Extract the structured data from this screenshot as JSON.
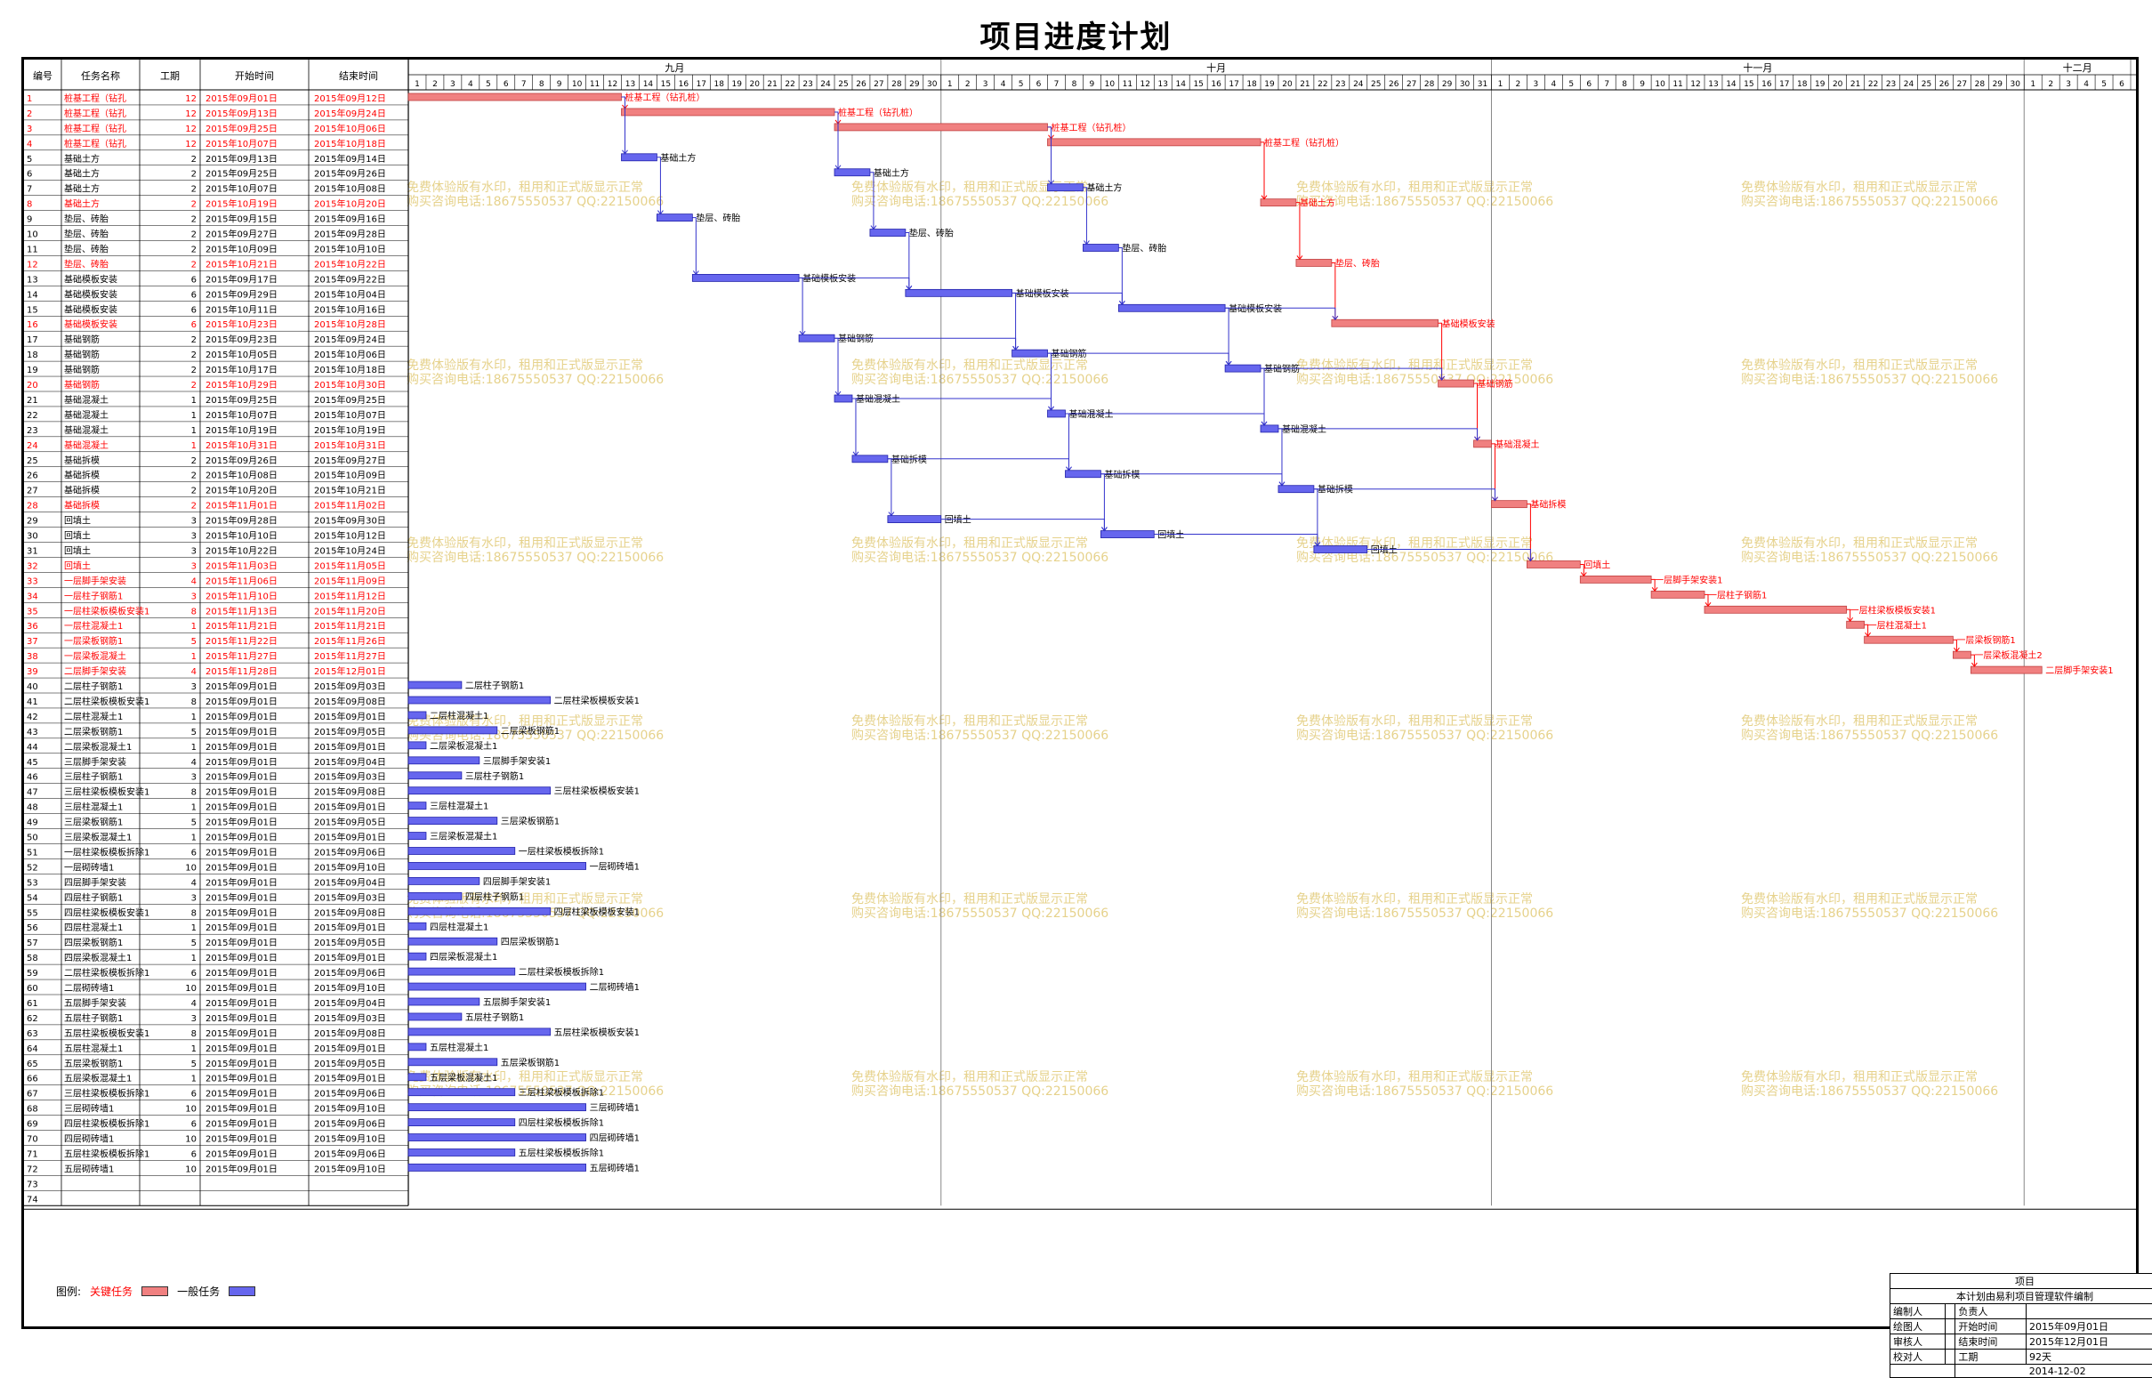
{
  "title": "项目进度计划",
  "watermark": [
    "免费体验版有水印，租用和正式版显示正常",
    "购买咨询电话:18675550537 QQ:22150066"
  ],
  "columns": [
    "编号",
    "任务名称",
    "工期",
    "开始时间",
    "结束时间"
  ],
  "months": [
    {
      "label": "九月",
      "days": 30
    },
    {
      "label": "十月",
      "days": 31
    },
    {
      "label": "十一月",
      "days": 30
    },
    {
      "label": "十二月",
      "days": 6
    }
  ],
  "colors": {
    "critical": "#f08080",
    "critical_text": "#ff0000",
    "normal": "#6666ee",
    "normal_text": "#000000",
    "link_normal": "#3333cc",
    "link_critical": "#ff0000",
    "watermark": "#e6d28c"
  },
  "legend": {
    "label": "图例:",
    "critical": "关键任务",
    "normal": "一般任务"
  },
  "title_block": {
    "heading": "项目",
    "note": "本计划由易利项目管理软件编制",
    "rows": [
      [
        "编制人",
        "",
        "负责人",
        ""
      ],
      [
        "绘图人",
        "",
        "开始时间",
        "2015年09月01日"
      ],
      [
        "审核人",
        "",
        "结束时间",
        "2015年12月01日"
      ],
      [
        "校对人",
        "",
        "工期",
        "92天"
      ]
    ],
    "date": "2014-12-02"
  },
  "chart_data": {
    "type": "gantt",
    "x_axis": "2015-09-01 to 2015-12-06 (days)",
    "tasks": [
      {
        "id": 1,
        "name": "桩基工程（钻孔",
        "dur": 12,
        "start": "2015年09月01日",
        "end": "2015年09月12日",
        "critical": true,
        "bar_label": "桩基工程（钻孔桩）"
      },
      {
        "id": 2,
        "name": "桩基工程（钻孔",
        "dur": 12,
        "start": "2015年09月13日",
        "end": "2015年09月24日",
        "critical": true,
        "bar_label": "桩基工程（钻孔桩）"
      },
      {
        "id": 3,
        "name": "桩基工程（钻孔",
        "dur": 12,
        "start": "2015年09月25日",
        "end": "2015年10月06日",
        "critical": true,
        "bar_label": "桩基工程（钻孔桩）"
      },
      {
        "id": 4,
        "name": "桩基工程（钻孔",
        "dur": 12,
        "start": "2015年10月07日",
        "end": "2015年10月18日",
        "critical": true,
        "bar_label": "桩基工程（钻孔桩）"
      },
      {
        "id": 5,
        "name": "基础土方",
        "dur": 2,
        "start": "2015年09月13日",
        "end": "2015年09月14日",
        "critical": false,
        "bar_label": "基础土方"
      },
      {
        "id": 6,
        "name": "基础土方",
        "dur": 2,
        "start": "2015年09月25日",
        "end": "2015年09月26日",
        "critical": false,
        "bar_label": "基础土方"
      },
      {
        "id": 7,
        "name": "基础土方",
        "dur": 2,
        "start": "2015年10月07日",
        "end": "2015年10月08日",
        "critical": false,
        "bar_label": "基础土方"
      },
      {
        "id": 8,
        "name": "基础土方",
        "dur": 2,
        "start": "2015年10月19日",
        "end": "2015年10月20日",
        "critical": true,
        "bar_label": "基础土方"
      },
      {
        "id": 9,
        "name": "垫层、砖胎",
        "dur": 2,
        "start": "2015年09月15日",
        "end": "2015年09月16日",
        "critical": false,
        "bar_label": "垫层、砖胎"
      },
      {
        "id": 10,
        "name": "垫层、砖胎",
        "dur": 2,
        "start": "2015年09月27日",
        "end": "2015年09月28日",
        "critical": false,
        "bar_label": "垫层、砖胎"
      },
      {
        "id": 11,
        "name": "垫层、砖胎",
        "dur": 2,
        "start": "2015年10月09日",
        "end": "2015年10月10日",
        "critical": false,
        "bar_label": "垫层、砖胎"
      },
      {
        "id": 12,
        "name": "垫层、砖胎",
        "dur": 2,
        "start": "2015年10月21日",
        "end": "2015年10月22日",
        "critical": true,
        "bar_label": "垫层、砖胎"
      },
      {
        "id": 13,
        "name": "基础模板安装",
        "dur": 6,
        "start": "2015年09月17日",
        "end": "2015年09月22日",
        "critical": false,
        "bar_label": "基础模板安装"
      },
      {
        "id": 14,
        "name": "基础模板安装",
        "dur": 6,
        "start": "2015年09月29日",
        "end": "2015年10月04日",
        "critical": false,
        "bar_label": "基础模板安装"
      },
      {
        "id": 15,
        "name": "基础模板安装",
        "dur": 6,
        "start": "2015年10月11日",
        "end": "2015年10月16日",
        "critical": false,
        "bar_label": "基础模板安装"
      },
      {
        "id": 16,
        "name": "基础模板安装",
        "dur": 6,
        "start": "2015年10月23日",
        "end": "2015年10月28日",
        "critical": true,
        "bar_label": "基础模板安装"
      },
      {
        "id": 17,
        "name": "基础钢筋",
        "dur": 2,
        "start": "2015年09月23日",
        "end": "2015年09月24日",
        "critical": false,
        "bar_label": "基础钢筋"
      },
      {
        "id": 18,
        "name": "基础钢筋",
        "dur": 2,
        "start": "2015年10月05日",
        "end": "2015年10月06日",
        "critical": false,
        "bar_label": "基础钢筋"
      },
      {
        "id": 19,
        "name": "基础钢筋",
        "dur": 2,
        "start": "2015年10月17日",
        "end": "2015年10月18日",
        "critical": false,
        "bar_label": "基础钢筋"
      },
      {
        "id": 20,
        "name": "基础钢筋",
        "dur": 2,
        "start": "2015年10月29日",
        "end": "2015年10月30日",
        "critical": true,
        "bar_label": "基础钢筋"
      },
      {
        "id": 21,
        "name": "基础混凝土",
        "dur": 1,
        "start": "2015年09月25日",
        "end": "2015年09月25日",
        "critical": false,
        "bar_label": "基础混凝土"
      },
      {
        "id": 22,
        "name": "基础混凝土",
        "dur": 1,
        "start": "2015年10月07日",
        "end": "2015年10月07日",
        "critical": false,
        "bar_label": "基础混凝土"
      },
      {
        "id": 23,
        "name": "基础混凝土",
        "dur": 1,
        "start": "2015年10月19日",
        "end": "2015年10月19日",
        "critical": false,
        "bar_label": "基础混凝土"
      },
      {
        "id": 24,
        "name": "基础混凝土",
        "dur": 1,
        "start": "2015年10月31日",
        "end": "2015年10月31日",
        "critical": true,
        "bar_label": "基础混凝土"
      },
      {
        "id": 25,
        "name": "基础拆模",
        "dur": 2,
        "start": "2015年09月26日",
        "end": "2015年09月27日",
        "critical": false,
        "bar_label": "基础拆模"
      },
      {
        "id": 26,
        "name": "基础拆模",
        "dur": 2,
        "start": "2015年10月08日",
        "end": "2015年10月09日",
        "critical": false,
        "bar_label": "基础拆模"
      },
      {
        "id": 27,
        "name": "基础拆模",
        "dur": 2,
        "start": "2015年10月20日",
        "end": "2015年10月21日",
        "critical": false,
        "bar_label": "基础拆模"
      },
      {
        "id": 28,
        "name": "基础拆模",
        "dur": 2,
        "start": "2015年11月01日",
        "end": "2015年11月02日",
        "critical": true,
        "bar_label": "基础拆模"
      },
      {
        "id": 29,
        "name": "回填土",
        "dur": 3,
        "start": "2015年09月28日",
        "end": "2015年09月30日",
        "critical": false,
        "bar_label": "回填土"
      },
      {
        "id": 30,
        "name": "回填土",
        "dur": 3,
        "start": "2015年10月10日",
        "end": "2015年10月12日",
        "critical": false,
        "bar_label": "回填土"
      },
      {
        "id": 31,
        "name": "回填土",
        "dur": 3,
        "start": "2015年10月22日",
        "end": "2015年10月24日",
        "critical": false,
        "bar_label": "回填土"
      },
      {
        "id": 32,
        "name": "回填土",
        "dur": 3,
        "start": "2015年11月03日",
        "end": "2015年11月05日",
        "critical": true,
        "bar_label": "回填土"
      },
      {
        "id": 33,
        "name": "一层脚手架安装",
        "dur": 4,
        "start": "2015年11月06日",
        "end": "2015年11月09日",
        "critical": true,
        "bar_label": "一层脚手架安装1"
      },
      {
        "id": 34,
        "name": "一层柱子钢筋1",
        "dur": 3,
        "start": "2015年11月10日",
        "end": "2015年11月12日",
        "critical": true,
        "bar_label": "一层柱子钢筋1"
      },
      {
        "id": 35,
        "name": "一层柱梁板模板安装1",
        "dur": 8,
        "start": "2015年11月13日",
        "end": "2015年11月20日",
        "critical": true,
        "bar_label": "一层柱梁板模板安装1"
      },
      {
        "id": 36,
        "name": "一层柱混凝土1",
        "dur": 1,
        "start": "2015年11月21日",
        "end": "2015年11月21日",
        "critical": true,
        "bar_label": "一层柱混凝土1"
      },
      {
        "id": 37,
        "name": "一层梁板钢筋1",
        "dur": 5,
        "start": "2015年11月22日",
        "end": "2015年11月26日",
        "critical": true,
        "bar_label": "一层梁板钢筋1"
      },
      {
        "id": 38,
        "name": "一层梁板混凝土",
        "dur": 1,
        "start": "2015年11月27日",
        "end": "2015年11月27日",
        "critical": true,
        "bar_label": "一层梁板混凝土2"
      },
      {
        "id": 39,
        "name": "二层脚手架安装",
        "dur": 4,
        "start": "2015年11月28日",
        "end": "2015年12月01日",
        "critical": true,
        "bar_label": "二层脚手架安装1"
      },
      {
        "id": 40,
        "name": "二层柱子钢筋1",
        "dur": 3,
        "start": "2015年09月01日",
        "end": "2015年09月03日",
        "critical": false,
        "bar_label": "二层柱子钢筋1"
      },
      {
        "id": 41,
        "name": "二层柱梁板模板安装1",
        "dur": 8,
        "start": "2015年09月01日",
        "end": "2015年09月08日",
        "critical": false,
        "bar_label": "二层柱梁板模板安装1"
      },
      {
        "id": 42,
        "name": "二层柱混凝土1",
        "dur": 1,
        "start": "2015年09月01日",
        "end": "2015年09月01日",
        "critical": false,
        "bar_label": "二层柱混凝土1"
      },
      {
        "id": 43,
        "name": "二层梁板钢筋1",
        "dur": 5,
        "start": "2015年09月01日",
        "end": "2015年09月05日",
        "critical": false,
        "bar_label": "二层梁板钢筋1"
      },
      {
        "id": 44,
        "name": "二层梁板混凝土1",
        "dur": 1,
        "start": "2015年09月01日",
        "end": "2015年09月01日",
        "critical": false,
        "bar_label": "二层梁板混凝土1"
      },
      {
        "id": 45,
        "name": "三层脚手架安装",
        "dur": 4,
        "start": "2015年09月01日",
        "end": "2015年09月04日",
        "critical": false,
        "bar_label": "三层脚手架安装1"
      },
      {
        "id": 46,
        "name": "三层柱子钢筋1",
        "dur": 3,
        "start": "2015年09月01日",
        "end": "2015年09月03日",
        "critical": false,
        "bar_label": "三层柱子钢筋1"
      },
      {
        "id": 47,
        "name": "三层柱梁板模板安装1",
        "dur": 8,
        "start": "2015年09月01日",
        "end": "2015年09月08日",
        "critical": false,
        "bar_label": "三层柱梁板模板安装1"
      },
      {
        "id": 48,
        "name": "三层柱混凝土1",
        "dur": 1,
        "start": "2015年09月01日",
        "end": "2015年09月01日",
        "critical": false,
        "bar_label": "三层柱混凝土1"
      },
      {
        "id": 49,
        "name": "三层梁板钢筋1",
        "dur": 5,
        "start": "2015年09月01日",
        "end": "2015年09月05日",
        "critical": false,
        "bar_label": "三层梁板钢筋1"
      },
      {
        "id": 50,
        "name": "三层梁板混凝土1",
        "dur": 1,
        "start": "2015年09月01日",
        "end": "2015年09月01日",
        "critical": false,
        "bar_label": "三层梁板混凝土1"
      },
      {
        "id": 51,
        "name": "一层柱梁板模板拆除1",
        "dur": 6,
        "start": "2015年09月01日",
        "end": "2015年09月06日",
        "critical": false,
        "bar_label": "一层柱梁板模板拆除1"
      },
      {
        "id": 52,
        "name": "一层砌砖墙1",
        "dur": 10,
        "start": "2015年09月01日",
        "end": "2015年09月10日",
        "critical": false,
        "bar_label": "一层砌砖墙1"
      },
      {
        "id": 53,
        "name": "四层脚手架安装",
        "dur": 4,
        "start": "2015年09月01日",
        "end": "2015年09月04日",
        "critical": false,
        "bar_label": "四层脚手架安装1"
      },
      {
        "id": 54,
        "name": "四层柱子钢筋1",
        "dur": 3,
        "start": "2015年09月01日",
        "end": "2015年09月03日",
        "critical": false,
        "bar_label": "四层柱子钢筋1"
      },
      {
        "id": 55,
        "name": "四层柱梁板模板安装1",
        "dur": 8,
        "start": "2015年09月01日",
        "end": "2015年09月08日",
        "critical": false,
        "bar_label": "四层柱梁板模板安装1"
      },
      {
        "id": 56,
        "name": "四层柱混凝土1",
        "dur": 1,
        "start": "2015年09月01日",
        "end": "2015年09月01日",
        "critical": false,
        "bar_label": "四层柱混凝土1"
      },
      {
        "id": 57,
        "name": "四层梁板钢筋1",
        "dur": 5,
        "start": "2015年09月01日",
        "end": "2015年09月05日",
        "critical": false,
        "bar_label": "四层梁板钢筋1"
      },
      {
        "id": 58,
        "name": "四层梁板混凝土1",
        "dur": 1,
        "start": "2015年09月01日",
        "end": "2015年09月01日",
        "critical": false,
        "bar_label": "四层梁板混凝土1"
      },
      {
        "id": 59,
        "name": "二层柱梁板模板拆除1",
        "dur": 6,
        "start": "2015年09月01日",
        "end": "2015年09月06日",
        "critical": false,
        "bar_label": "二层柱梁板模板拆除1"
      },
      {
        "id": 60,
        "name": "二层砌砖墙1",
        "dur": 10,
        "start": "2015年09月01日",
        "end": "2015年09月10日",
        "critical": false,
        "bar_label": "二层砌砖墙1"
      },
      {
        "id": 61,
        "name": "五层脚手架安装",
        "dur": 4,
        "start": "2015年09月01日",
        "end": "2015年09月04日",
        "critical": false,
        "bar_label": "五层脚手架安装1"
      },
      {
        "id": 62,
        "name": "五层柱子钢筋1",
        "dur": 3,
        "start": "2015年09月01日",
        "end": "2015年09月03日",
        "critical": false,
        "bar_label": "五层柱子钢筋1"
      },
      {
        "id": 63,
        "name": "五层柱梁板模板安装1",
        "dur": 8,
        "start": "2015年09月01日",
        "end": "2015年09月08日",
        "critical": false,
        "bar_label": "五层柱梁板模板安装1"
      },
      {
        "id": 64,
        "name": "五层柱混凝土1",
        "dur": 1,
        "start": "2015年09月01日",
        "end": "2015年09月01日",
        "critical": false,
        "bar_label": "五层柱混凝土1"
      },
      {
        "id": 65,
        "name": "五层梁板钢筋1",
        "dur": 5,
        "start": "2015年09月01日",
        "end": "2015年09月05日",
        "critical": false,
        "bar_label": "五层梁板钢筋1"
      },
      {
        "id": 66,
        "name": "五层梁板混凝土1",
        "dur": 1,
        "start": "2015年09月01日",
        "end": "2015年09月01日",
        "critical": false,
        "bar_label": "五层梁板混凝土1"
      },
      {
        "id": 67,
        "name": "三层柱梁板模板拆除1",
        "dur": 6,
        "start": "2015年09月01日",
        "end": "2015年09月06日",
        "critical": false,
        "bar_label": "三层柱梁板模板拆除1"
      },
      {
        "id": 68,
        "name": "三层砌砖墙1",
        "dur": 10,
        "start": "2015年09月01日",
        "end": "2015年09月10日",
        "critical": false,
        "bar_label": "三层砌砖墙1"
      },
      {
        "id": 69,
        "name": "四层柱梁板模板拆除1",
        "dur": 6,
        "start": "2015年09月01日",
        "end": "2015年09月06日",
        "critical": false,
        "bar_label": "四层柱梁板模板拆除1"
      },
      {
        "id": 70,
        "name": "四层砌砖墙1",
        "dur": 10,
        "start": "2015年09月01日",
        "end": "2015年09月10日",
        "critical": false,
        "bar_label": "四层砌砖墙1"
      },
      {
        "id": 71,
        "name": "五层柱梁板模板拆除1",
        "dur": 6,
        "start": "2015年09月01日",
        "end": "2015年09月06日",
        "critical": false,
        "bar_label": "五层柱梁板模板拆除1"
      },
      {
        "id": 72,
        "name": "五层砌砖墙1",
        "dur": 10,
        "start": "2015年09月01日",
        "end": "2015年09月10日",
        "critical": false,
        "bar_label": "五层砌砖墙1"
      },
      {
        "id": 73,
        "name": "",
        "dur": "",
        "start": "",
        "end": "",
        "critical": false,
        "bar_label": ""
      },
      {
        "id": 74,
        "name": "",
        "dur": "",
        "start": "",
        "end": "",
        "critical": false,
        "bar_label": ""
      }
    ]
  }
}
